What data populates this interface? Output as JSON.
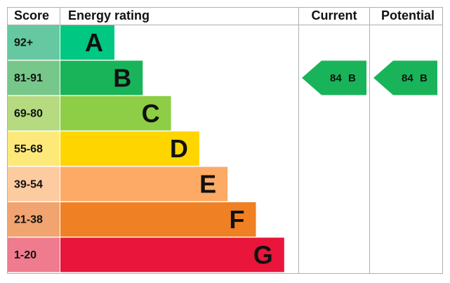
{
  "header": {
    "score": "Score",
    "rating": "Energy rating",
    "current": "Current",
    "potential": "Potential"
  },
  "bands": [
    {
      "score": "92+",
      "letter": "A",
      "color": "#00c781",
      "score_color": "#66c8a0"
    },
    {
      "score": "81-91",
      "letter": "B",
      "color": "#19b459",
      "score_color": "#77c78a"
    },
    {
      "score": "69-80",
      "letter": "C",
      "color": "#8dce46",
      "score_color": "#b5da80"
    },
    {
      "score": "55-68",
      "letter": "D",
      "color": "#ffd500",
      "score_color": "#fde97a"
    },
    {
      "score": "39-54",
      "letter": "E",
      "color": "#fcaa65",
      "score_color": "#fdcba0"
    },
    {
      "score": "21-38",
      "letter": "F",
      "color": "#ef8023",
      "score_color": "#f1a46f"
    },
    {
      "score": "1-20",
      "letter": "G",
      "color": "#e9153b",
      "score_color": "#ee7b8e"
    }
  ],
  "current": {
    "score": "84",
    "band": "B"
  },
  "potential": {
    "score": "84",
    "band": "B"
  }
}
